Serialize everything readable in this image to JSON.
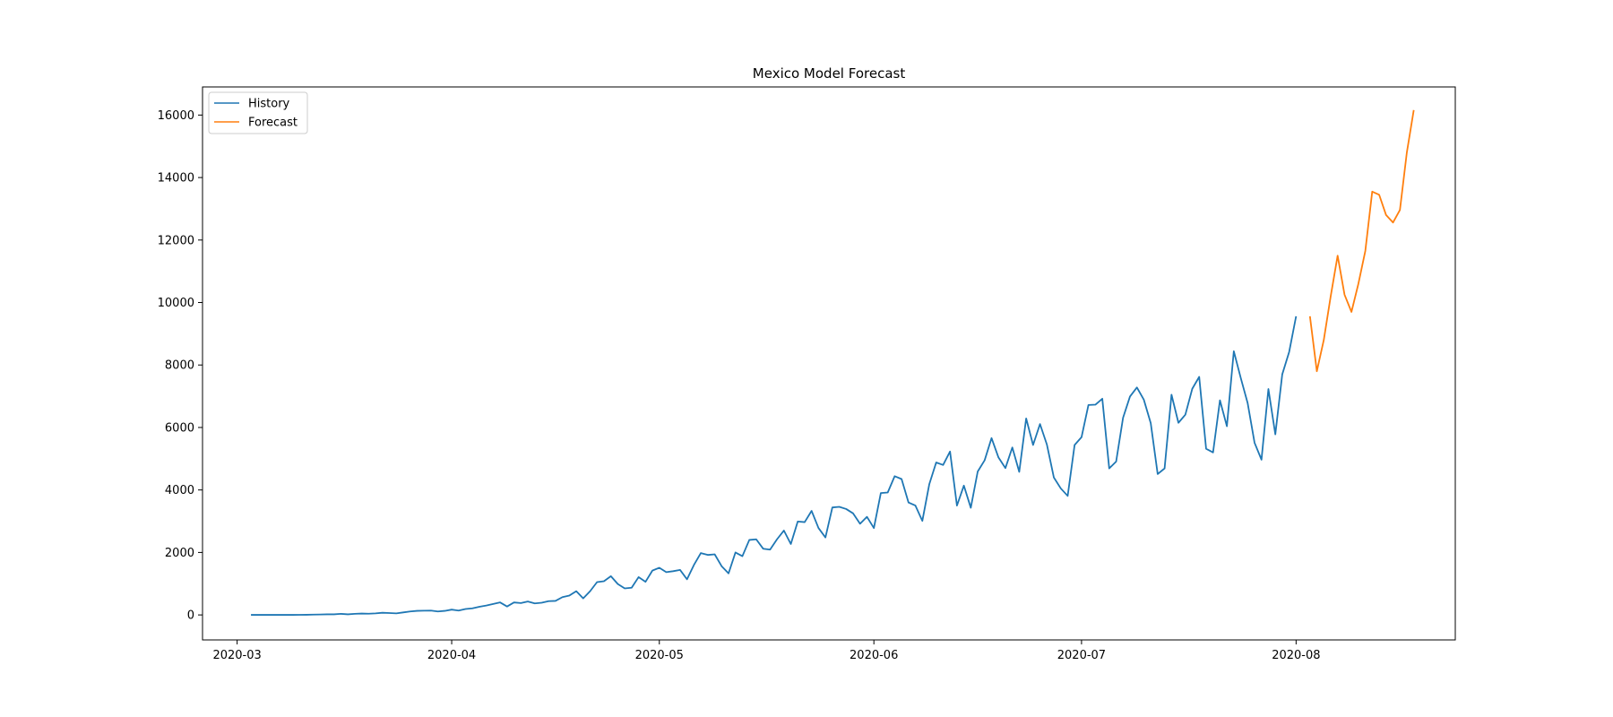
{
  "chart_data": {
    "type": "line",
    "title": "Mexico Model Forecast",
    "xlabel": "",
    "ylabel": "",
    "xlim": [
      "2020-02-25",
      "2020-08-24"
    ],
    "ylim": [
      -800,
      16900
    ],
    "x_ticks": [
      "2020-03-01",
      "2020-04-01",
      "2020-05-01",
      "2020-06-01",
      "2020-07-01",
      "2020-08-01"
    ],
    "x_tick_labels": [
      "2020-03",
      "2020-04",
      "2020-05",
      "2020-06",
      "2020-07",
      "2020-08"
    ],
    "y_ticks": [
      0,
      2000,
      4000,
      6000,
      8000,
      10000,
      12000,
      14000,
      16000
    ],
    "y_tick_labels": [
      "0",
      "2000",
      "4000",
      "6000",
      "8000",
      "10000",
      "12000",
      "14000",
      "16000"
    ],
    "grid": false,
    "legend": {
      "placement": "top-left",
      "entries": [
        "History",
        "Forecast"
      ]
    },
    "series": [
      {
        "name": "History",
        "color": "#1f77b4",
        "start_date": "2020-03-03",
        "step_days": 1,
        "values": [
          2,
          1,
          1,
          1,
          1,
          1,
          2,
          3,
          5,
          10,
          15,
          20,
          20,
          35,
          20,
          35,
          45,
          40,
          50,
          70,
          60,
          50,
          80,
          110,
          130,
          135,
          140,
          110,
          130,
          170,
          140,
          190,
          210,
          260,
          300,
          350,
          400,
          270,
          400,
          380,
          430,
          370,
          390,
          440,
          450,
          570,
          620,
          760,
          530,
          760,
          1050,
          1080,
          1240,
          990,
          850,
          870,
          1210,
          1060,
          1420,
          1510,
          1370,
          1400,
          1440,
          1140,
          1600,
          1980,
          1920,
          1940,
          1560,
          1330,
          2000,
          1880,
          2400,
          2420,
          2120,
          2090,
          2420,
          2700,
          2270,
          2990,
          2970,
          3330,
          2780,
          2480,
          3440,
          3460,
          3390,
          3250,
          2920,
          3140,
          2780,
          3900,
          3920,
          4440,
          4350,
          3600,
          3500,
          3010,
          4180,
          4880,
          4800,
          5230,
          3500,
          4140,
          3430,
          4590,
          4950,
          5660,
          5040,
          4700,
          5360,
          4580,
          6290,
          5440,
          6110,
          5450,
          4400,
          4050,
          3810,
          5440,
          5690,
          6720,
          6730,
          6920,
          4690,
          4910,
          6310,
          6990,
          7280,
          6890,
          6140,
          4510,
          4690,
          7050,
          6150,
          6410,
          7240,
          7620,
          5320,
          5200,
          6870,
          6040,
          8440,
          7590,
          6780,
          5510,
          4970,
          7230,
          5780,
          7700,
          8420,
          9560
        ]
      },
      {
        "name": "Forecast",
        "color": "#ff7f0e",
        "start_date": "2020-08-03",
        "step_days": 1,
        "values": [
          9560,
          7800,
          8800,
          10200,
          11500,
          10250,
          9700,
          10600,
          11650,
          13550,
          13450,
          12800,
          12560,
          12960,
          14800,
          16160
        ]
      }
    ]
  }
}
